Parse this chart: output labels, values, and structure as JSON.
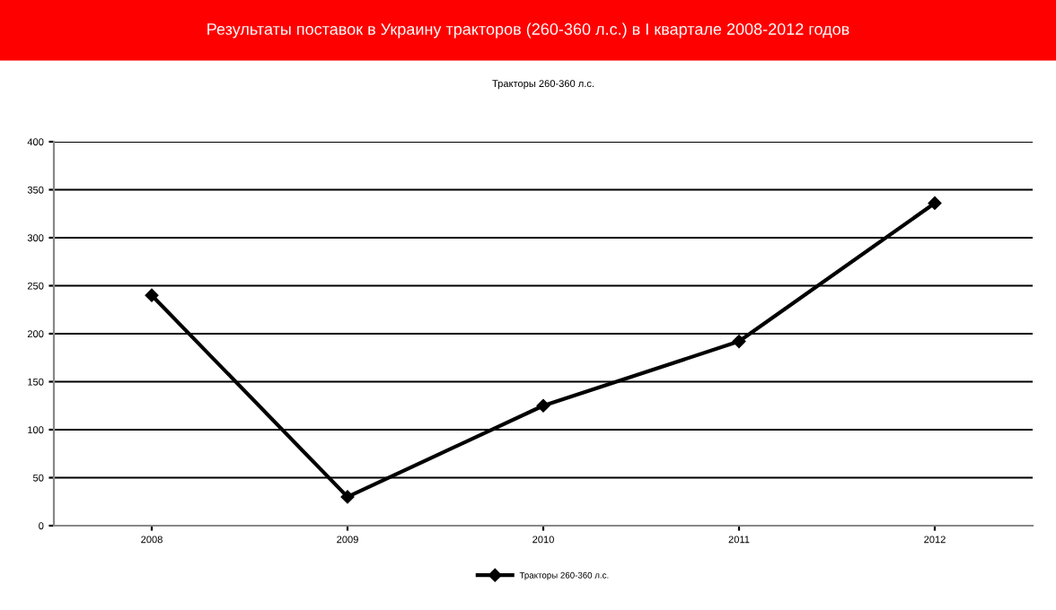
{
  "chart_data": {
    "type": "line",
    "title": "Результаты поставок в Украину тракторов (260-360 л.с.) в I квартале 2008-2012 годов",
    "subtitle": "Тракторы 260-360 л.с.",
    "categories": [
      "2008",
      "2009",
      "2010",
      "2011",
      "2012"
    ],
    "series": [
      {
        "name": "Тракторы 260-360 л.с.",
        "color": "#000000",
        "values": [
          240,
          30,
          125,
          192,
          336
        ]
      }
    ],
    "ylim": [
      0,
      400
    ],
    "yticks": [
      0,
      50,
      100,
      150,
      200,
      250,
      300,
      350,
      400
    ],
    "grid": "y",
    "legend": "bottom",
    "marker": "diamond",
    "line_style": "solid"
  }
}
